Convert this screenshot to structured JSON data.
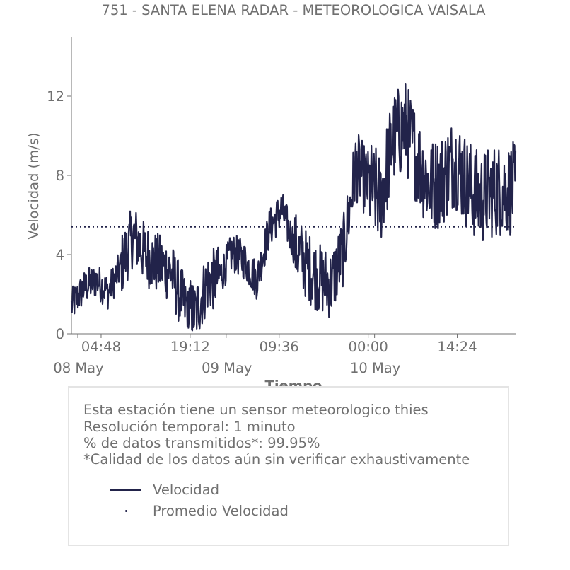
{
  "chart_data": {
    "type": "line",
    "title": "751 - SANTA ELENA RADAR - METEOROLOGICA VAISALA",
    "xlabel": "Tiempo",
    "ylabel": "Velocidad (m/s)",
    "ylim": [
      0,
      15
    ],
    "xlim": [
      "2024-05-08 00:00",
      "2024-05-10 23:50"
    ],
    "yticks": [
      "0",
      "4",
      "8",
      "12"
    ],
    "xticks_time": [
      "04:48",
      "19:12",
      "09:36",
      "00:00",
      "14:24"
    ],
    "xticks_date": [
      "08 May",
      "09 May",
      "10 May"
    ],
    "grid": false,
    "series": [
      {
        "name": "Velocidad",
        "color": "#22234a",
        "style": "solid",
        "x": [
          "08 May 00:00",
          "08 May 02:00",
          "08 May 04:00",
          "08 May 06:00",
          "08 May 08:00",
          "08 May 10:00",
          "08 May 12:00",
          "08 May 14:00",
          "08 May 16:00",
          "08 May 18:00",
          "08 May 20:00",
          "08 May 22:00",
          "09 May 00:00",
          "09 May 02:00",
          "09 May 04:00",
          "09 May 06:00",
          "09 May 08:00",
          "09 May 10:00",
          "09 May 12:00",
          "09 May 14:00",
          "09 May 16:00",
          "09 May 18:00",
          "09 May 20:00",
          "09 May 22:00",
          "10 May 00:00",
          "10 May 02:00",
          "10 May 04:00",
          "10 May 06:00",
          "10 May 08:00",
          "10 May 10:00",
          "10 May 12:00",
          "10 May 14:00",
          "10 May 16:00",
          "10 May 18:00",
          "10 May 20:00",
          "10 May 22:00"
        ],
        "values": [
          1.4,
          2.3,
          2.7,
          2.1,
          3.4,
          5.0,
          4.0,
          3.5,
          3.2,
          1.6,
          1.0,
          2.6,
          2.9,
          4.1,
          3.7,
          2.7,
          5.3,
          6.3,
          4.5,
          3.5,
          2.8,
          2.5,
          4.2,
          8.5,
          7.5,
          6.8,
          9.8,
          10.5,
          8.8,
          7.4,
          7.8,
          8.8,
          7.6,
          6.8,
          7.2,
          7.3
        ]
      },
      {
        "name": "Promedio Velocidad",
        "color": "#22234a",
        "style": "dotted",
        "values": [
          5.4
        ]
      }
    ]
  },
  "info": {
    "line1": "Esta estación tiene un sensor meteorologico thies",
    "line2": "Resolución temporal: 1 minuto",
    "line3": "% de datos transmitidos*: 99.95%",
    "line4": "*Calidad de los datos aún sin verificar exhaustivamente"
  },
  "legend": {
    "series_label": "Velocidad",
    "mean_label": "Promedio Velocidad"
  }
}
